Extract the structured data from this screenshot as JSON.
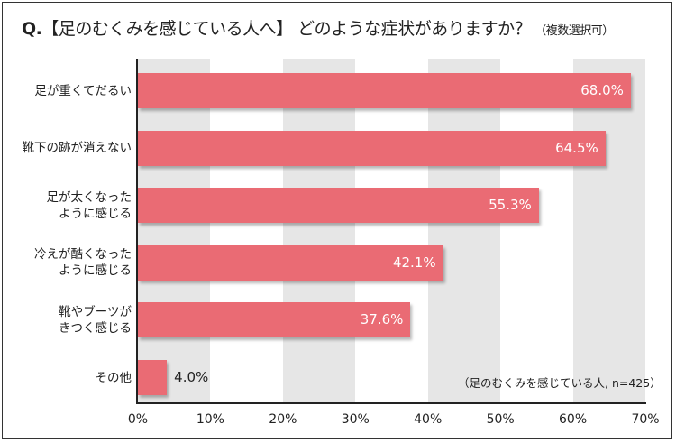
{
  "title": {
    "prefix": "Q.",
    "text": "【足のむくみを感じている人へ】 どのような症状がありますか？",
    "note": "（複数選択可）"
  },
  "sample_note": "（足のむくみを感じている人, n=425）",
  "colors": {
    "bar": "#ea6b74",
    "band": "#e6e6e6",
    "axis": "#222222"
  },
  "bars": [
    {
      "label_lines": [
        "足が重くてだるい"
      ],
      "value": 68.0,
      "value_label": "68.0%"
    },
    {
      "label_lines": [
        "靴下の跡が消えない"
      ],
      "value": 64.5,
      "value_label": "64.5%"
    },
    {
      "label_lines": [
        "足が太くなった",
        "ように感じる"
      ],
      "value": 55.3,
      "value_label": "55.3%"
    },
    {
      "label_lines": [
        "冷えが酷くなった",
        "ように感じる"
      ],
      "value": 42.1,
      "value_label": "42.1%"
    },
    {
      "label_lines": [
        "靴やブーツが",
        "きつく感じる"
      ],
      "value": 37.6,
      "value_label": "37.6%"
    },
    {
      "label_lines": [
        "その他"
      ],
      "value": 4.0,
      "value_label": "4.0%"
    }
  ],
  "x_ticks": [
    "0%",
    "10%",
    "20%",
    "30%",
    "40%",
    "50%",
    "60%",
    "70%"
  ],
  "chart_data": {
    "type": "bar",
    "orientation": "horizontal",
    "title": "Q.【足のむくみを感じている人へ】 どのような症状がありますか？（複数選択可）",
    "categories": [
      "足が重くてだるい",
      "靴下の跡が消えない",
      "足が太くなったように感じる",
      "冷えが酷くなったように感じる",
      "靴やブーツがきつく感じる",
      "その他"
    ],
    "values": [
      68.0,
      64.5,
      55.3,
      42.1,
      37.6,
      4.0
    ],
    "xlabel": "",
    "ylabel": "",
    "xlim": [
      0,
      70
    ],
    "x_ticks": [
      0,
      10,
      20,
      30,
      40,
      50,
      60,
      70
    ],
    "tick_format": "%",
    "grid": "alternating vertical bands every 10%",
    "legend": null,
    "annotations": [
      "（足のむくみを感じている人, n=425）"
    ]
  }
}
